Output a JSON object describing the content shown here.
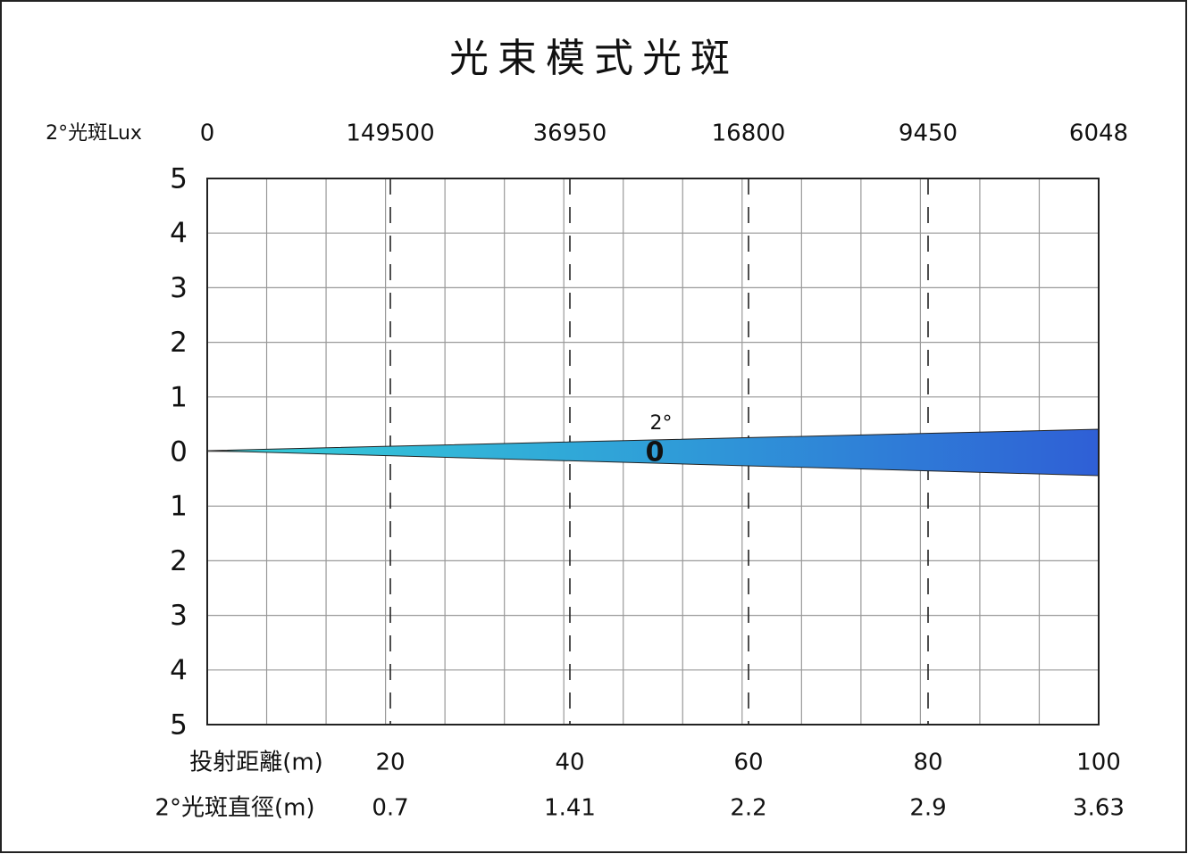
{
  "title": "光束模式光斑",
  "lux_row": {
    "label": "2°光斑Lux",
    "values": [
      "0",
      "149500",
      "36950",
      "16800",
      "9450",
      "6048"
    ]
  },
  "y_labels": [
    "5",
    "4",
    "3",
    "2",
    "1",
    "0",
    "1",
    "2",
    "3",
    "4",
    "5"
  ],
  "beam": {
    "angle": "2°",
    "center": "0"
  },
  "distance_row": {
    "label": "投射距離(m)",
    "values": [
      "20",
      "40",
      "60",
      "80",
      "100"
    ]
  },
  "diameter_row": {
    "label": "2°光斑直徑(m)",
    "values": [
      "0.7",
      "1.41",
      "2.2",
      "2.9",
      "3.63"
    ]
  }
}
